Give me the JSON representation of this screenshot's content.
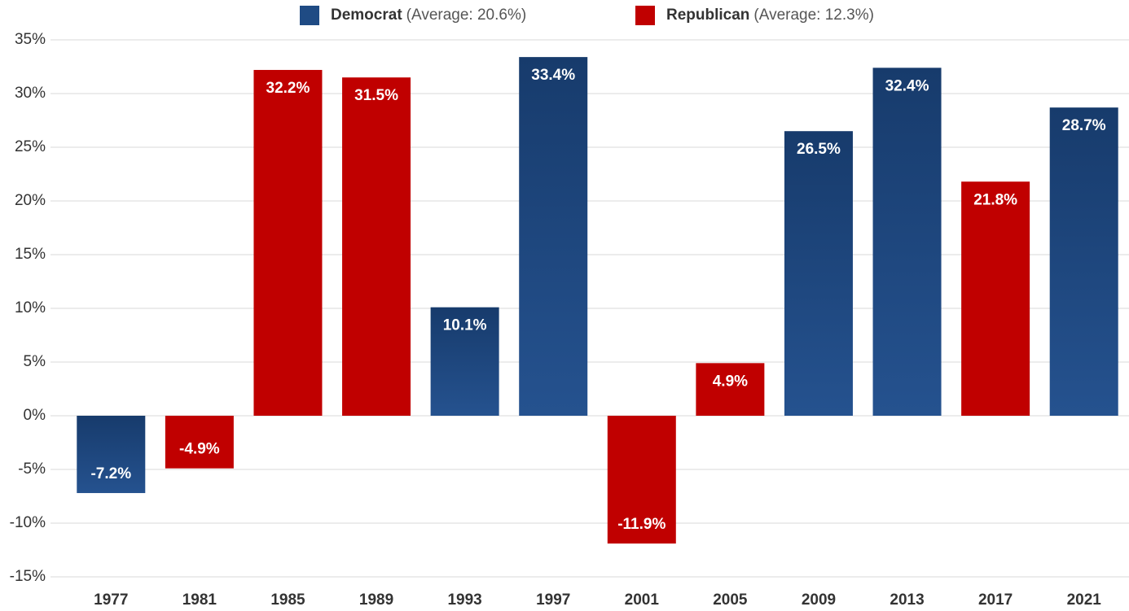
{
  "chart_data": {
    "type": "bar",
    "categories": [
      "1977",
      "1981",
      "1985",
      "1989",
      "1993",
      "1997",
      "2001",
      "2005",
      "2009",
      "2013",
      "2017",
      "2021"
    ],
    "series": [
      {
        "name": "Democrat",
        "average_label": "(Average: 20.6%)",
        "color": "#1f4b84",
        "values": [
          -7.2,
          null,
          null,
          null,
          10.1,
          33.4,
          null,
          null,
          26.5,
          32.4,
          null,
          28.7
        ],
        "value_labels": [
          "-7.2%",
          null,
          null,
          null,
          "10.1%",
          "33.4%",
          null,
          null,
          "26.5%",
          "32.4%",
          null,
          "28.7%"
        ]
      },
      {
        "name": "Republican",
        "average_label": "(Average: 12.3%)",
        "color": "#c00000",
        "values": [
          null,
          -4.9,
          32.2,
          31.5,
          null,
          null,
          -11.9,
          4.9,
          null,
          null,
          21.8,
          null
        ],
        "value_labels": [
          null,
          "-4.9%",
          "32.2%",
          "31.5%",
          null,
          null,
          "-11.9%",
          "4.9%",
          null,
          null,
          "21.8%",
          null
        ]
      }
    ],
    "ylim": [
      -15,
      35
    ],
    "yticks": [
      {
        "value": -15,
        "label": "-15%"
      },
      {
        "value": -10,
        "label": "-10%"
      },
      {
        "value": -5,
        "label": "-5%"
      },
      {
        "value": 0,
        "label": "0%"
      },
      {
        "value": 5,
        "label": "5%"
      },
      {
        "value": 10,
        "label": "10%"
      },
      {
        "value": 15,
        "label": "15%"
      },
      {
        "value": 20,
        "label": "20%"
      },
      {
        "value": 25,
        "label": "25%"
      },
      {
        "value": 30,
        "label": "30%"
      },
      {
        "value": 35,
        "label": "35%"
      }
    ],
    "grid": true
  }
}
